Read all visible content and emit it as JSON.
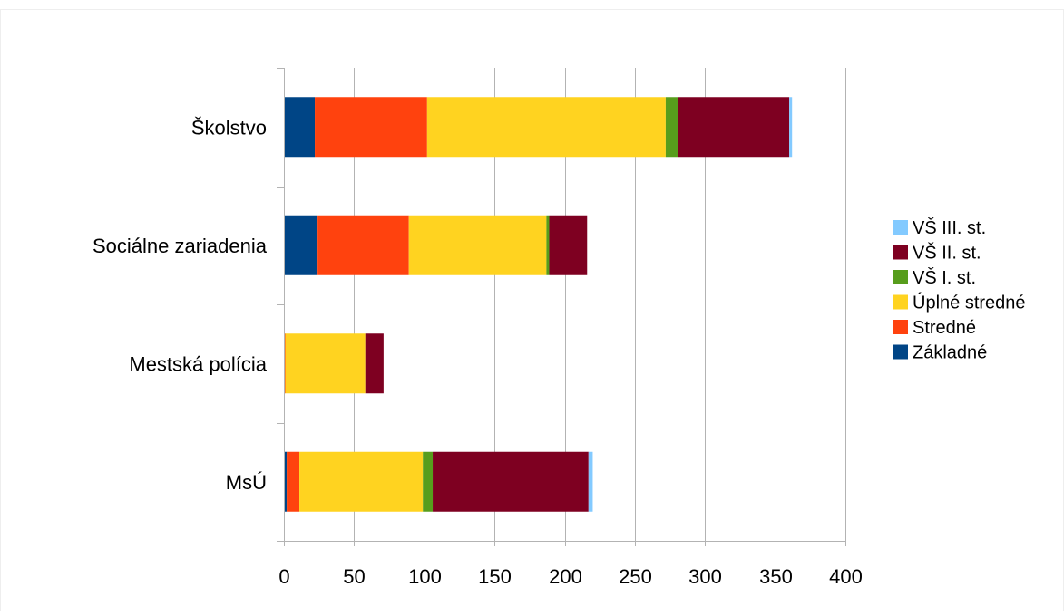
{
  "chart_data": {
    "type": "bar",
    "orientation": "horizontal",
    "stacked": true,
    "title": "",
    "xlabel": "",
    "ylabel": "",
    "categories": [
      "Školstvo",
      "Sociálne zariadenia",
      "Mestská polícia",
      "MsÚ"
    ],
    "xlim": [
      0,
      400
    ],
    "xticks": [
      0,
      50,
      100,
      150,
      200,
      250,
      300,
      350,
      400
    ],
    "grid": "vertical",
    "legend_position": "right",
    "series": [
      {
        "name": "Základné",
        "color": "#004586",
        "values": [
          22,
          24,
          0,
          2
        ]
      },
      {
        "name": "Stredné",
        "color": "#ff420e",
        "values": [
          80,
          65,
          1,
          9
        ]
      },
      {
        "name": "Úplné stredné",
        "color": "#ffd320",
        "values": [
          170,
          98,
          57,
          88
        ]
      },
      {
        "name": "VŠ I. st.",
        "color": "#579d1c",
        "values": [
          9,
          2,
          0,
          7
        ]
      },
      {
        "name": "VŠ II. st.",
        "color": "#7e0021",
        "values": [
          79,
          27,
          13,
          111
        ]
      },
      {
        "name": "VŠ III. st.",
        "color": "#83caff",
        "values": [
          2,
          0,
          0,
          3
        ]
      }
    ]
  }
}
